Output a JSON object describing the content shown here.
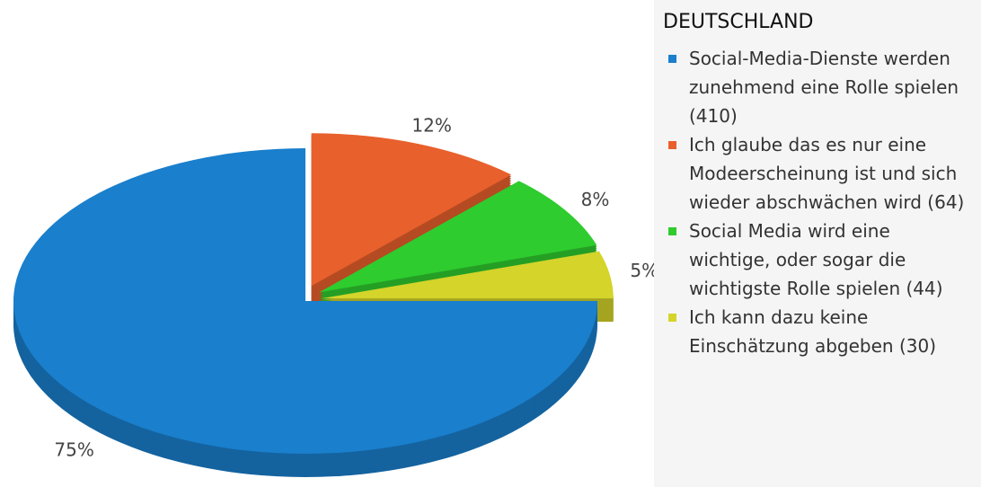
{
  "chart_data": {
    "type": "pie",
    "title": "DEUTSCHLAND",
    "categories": [
      "Social-Media-Dienste werden zunehmend eine Rolle spielen (410)",
      "Ich glaube das es nur eine Modeerscheinung ist und sich wieder abschwächen wird (64)",
      "Social Media wird eine wichtige, oder sogar die wichtigste Rolle spielen (44)",
      "Ich kann dazu keine Einschätzung abgeben (30)"
    ],
    "values": [
      75,
      12,
      8,
      5
    ],
    "value_labels": [
      "75%",
      "12%",
      "8%",
      "5%"
    ],
    "colors": [
      "#1a7fcc",
      "#e8602c",
      "#2ecc2e",
      "#d4d42a"
    ],
    "legend": "right"
  }
}
